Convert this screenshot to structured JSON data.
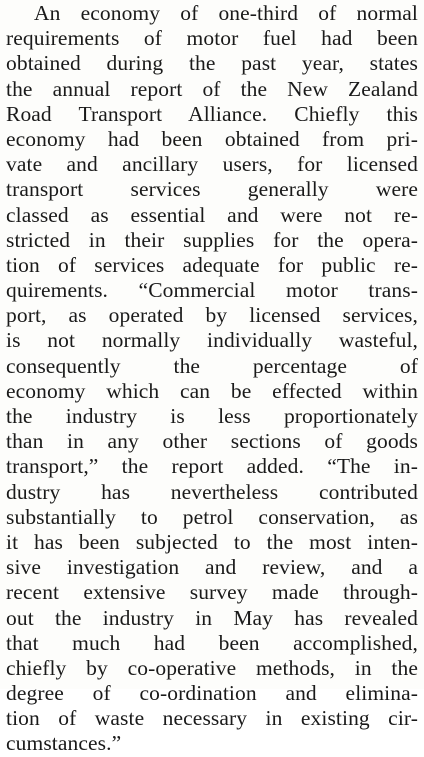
{
  "article": {
    "lines": [
      "An economy of one-third of normal",
      "requirements of motor fuel had been",
      "obtained during the past year, states",
      "the annual report of the New Zealand",
      "Road Transport Alliance. Chiefly this",
      "economy had been obtained from pri-",
      "vate and ancillary users, for licensed",
      "transport services generally were",
      "classed as essential and were not re-",
      "stricted in their supplies for the opera-",
      "tion of services adequate for public re-",
      "quirements. “Commercial motor trans-",
      "port, as operated by licensed services,",
      "is not normally individually wasteful,",
      "consequently the percentage of",
      "economy which can be effected within",
      "the industry is less proportionately",
      "than in any other sections of goods",
      "transport,” the report added. “The in-",
      "dustry has nevertheless contributed",
      "substantially to petrol conservation, as",
      "it has been subjected to the most inten-",
      "sive investigation and review, and a",
      "recent extensive survey made through-",
      "out the industry in May has revealed",
      "that much had been accomplished,",
      "chiefly by co-operative methods, in the",
      "degree of co-ordination and elimina-",
      "tion of waste necessary in existing cir-",
      "cumstances.”"
    ]
  }
}
